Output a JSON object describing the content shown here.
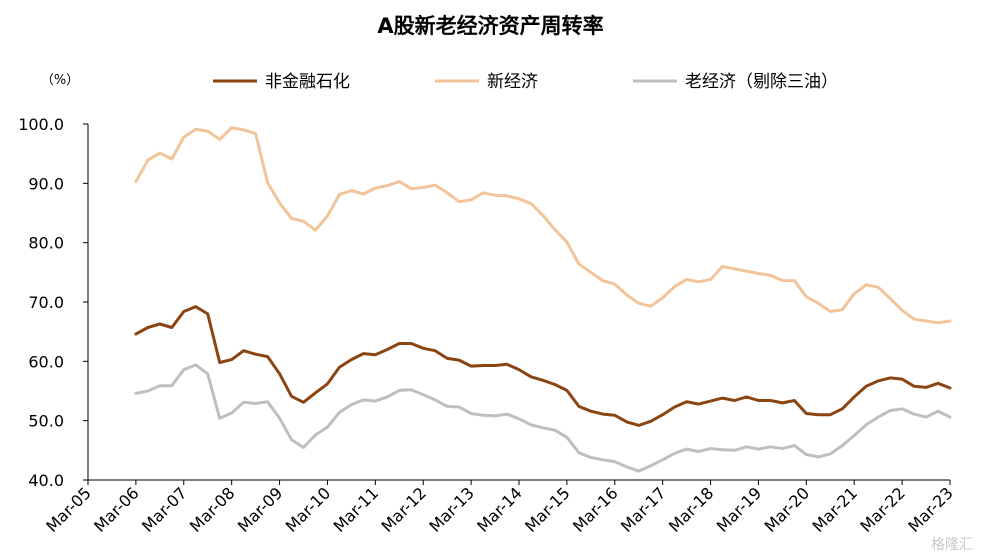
{
  "title": "A股新老经济资产周转率",
  "watermark": "格隆汇",
  "chart_data": {
    "type": "line",
    "title": "A股新老经济资产周转率",
    "ylabel": "（%）",
    "ylim": [
      40,
      100
    ],
    "yticks": [
      "40.0",
      "50.0",
      "60.0",
      "70.0",
      "80.0",
      "90.0",
      "100.0"
    ],
    "xlim": [
      2005.0,
      2023.0
    ],
    "xticks": [
      "Mar-05",
      "Mar-06",
      "Mar-07",
      "Mar-08",
      "Mar-09",
      "Mar-10",
      "Mar-11",
      "Mar-12",
      "Mar-13",
      "Mar-14",
      "Mar-15",
      "Mar-16",
      "Mar-17",
      "Mar-18",
      "Mar-19",
      "Mar-20",
      "Mar-21",
      "Mar-22",
      "Mar-23"
    ],
    "legend_position": "top",
    "grid": false,
    "x_start": 2006.0,
    "x_step": 0.25,
    "series": [
      {
        "name": "非金融石化",
        "color": "#8B4513",
        "values": [
          64.6,
          65.7,
          66.3,
          65.7,
          68.4,
          69.2,
          68.0,
          59.8,
          60.3,
          61.8,
          61.2,
          60.8,
          57.9,
          54.1,
          53.1,
          54.7,
          56.2,
          59.0,
          60.3,
          61.3,
          61.1,
          62.0,
          63.0,
          63.0,
          62.2,
          61.8,
          60.5,
          60.2,
          59.2,
          59.3,
          59.3,
          59.5,
          58.6,
          57.4,
          56.8,
          56.1,
          55.1,
          52.4,
          51.6,
          51.1,
          50.9,
          49.8,
          49.2,
          49.9,
          51.0,
          52.3,
          53.2,
          52.8,
          53.3,
          53.8,
          53.4,
          54.0,
          53.4,
          53.4,
          53.0,
          53.4,
          51.2,
          51.0,
          51.0,
          52.0,
          54.0,
          55.8,
          56.7,
          57.2,
          57.0,
          55.8,
          55.6,
          56.3,
          55.5
        ]
      },
      {
        "name": "新经济",
        "color": "#F3C39A",
        "values": [
          90.3,
          93.9,
          95.1,
          94.1,
          97.8,
          99.1,
          98.8,
          97.4,
          99.4,
          99.0,
          98.4,
          90.1,
          86.7,
          84.1,
          83.6,
          82.1,
          84.5,
          88.1,
          88.8,
          88.2,
          89.2,
          89.6,
          90.3,
          89.1,
          89.3,
          89.7,
          88.4,
          86.9,
          87.2,
          88.4,
          88.0,
          87.9,
          87.4,
          86.6,
          84.6,
          82.2,
          80.1,
          76.4,
          75.0,
          73.6,
          73.0,
          71.2,
          69.8,
          69.3,
          70.7,
          72.6,
          73.8,
          73.4,
          73.8,
          76.0,
          75.6,
          75.2,
          74.8,
          74.5,
          73.6,
          73.6,
          70.9,
          69.8,
          68.4,
          68.7,
          71.4,
          72.9,
          72.5,
          70.6,
          68.6,
          67.1,
          66.8,
          66.5,
          66.8
        ]
      },
      {
        "name": "老经济（剔除三油）",
        "color": "#BFBFBF",
        "values": [
          54.6,
          55.0,
          55.9,
          55.9,
          58.6,
          59.4,
          57.9,
          50.4,
          51.3,
          53.1,
          52.9,
          53.2,
          50.4,
          46.8,
          45.5,
          47.6,
          48.9,
          51.4,
          52.7,
          53.5,
          53.3,
          54.0,
          55.1,
          55.2,
          54.4,
          53.5,
          52.4,
          52.3,
          51.2,
          50.9,
          50.8,
          51.1,
          50.3,
          49.3,
          48.8,
          48.4,
          47.2,
          44.6,
          43.8,
          43.4,
          43.1,
          42.2,
          41.5,
          42.4,
          43.4,
          44.5,
          45.2,
          44.8,
          45.3,
          45.1,
          45.0,
          45.6,
          45.2,
          45.6,
          45.3,
          45.8,
          44.3,
          43.9,
          44.4,
          45.8,
          47.5,
          49.3,
          50.6,
          51.7,
          52.0,
          51.1,
          50.6,
          51.6,
          50.6
        ]
      }
    ]
  }
}
